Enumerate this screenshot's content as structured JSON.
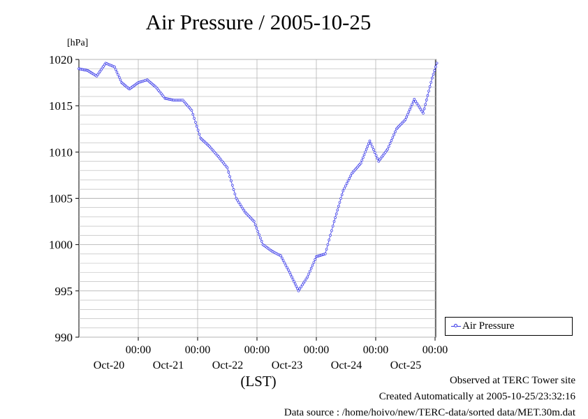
{
  "chart_data": {
    "type": "line",
    "title": "Air Pressure / 2005-10-25",
    "ylabel": "[hPa]",
    "xlabel": "(LST)",
    "ylim": [
      990,
      1020
    ],
    "yticks": [
      990,
      995,
      1000,
      1005,
      1010,
      1015,
      1020
    ],
    "x_tick_labels": [
      {
        "time": "00:00",
        "date": "Oct-20"
      },
      {
        "time": "00:00",
        "date": "Oct-21"
      },
      {
        "time": "00:00",
        "date": "Oct-22"
      },
      {
        "time": "00:00",
        "date": "Oct-23"
      },
      {
        "time": "00:00",
        "date": "Oct-24"
      },
      {
        "time": "00:00",
        "date": "Oct-25"
      }
    ],
    "grid": true,
    "legend_position": "right",
    "series": [
      {
        "name": "Air Pressure",
        "color": "#3535e8",
        "x_days": [
          0,
          0.15,
          0.3,
          0.45,
          0.6,
          0.72,
          0.85,
          1.0,
          1.15,
          1.3,
          1.45,
          1.6,
          1.75,
          1.9,
          2.05,
          2.2,
          2.35,
          2.5,
          2.65,
          2.8,
          2.95,
          3.1,
          3.25,
          3.4,
          3.55,
          3.7,
          3.85,
          4.0,
          4.15,
          4.3,
          4.45,
          4.6,
          4.75,
          4.9,
          5.05,
          5.2,
          5.35,
          5.5,
          5.65,
          5.8,
          5.95,
          6.03
        ],
        "values": [
          1019,
          1018.8,
          1018.2,
          1019.6,
          1019.2,
          1017.5,
          1016.8,
          1017.5,
          1017.8,
          1017,
          1015.8,
          1015.6,
          1015.6,
          1014.5,
          1011.5,
          1010.6,
          1009.5,
          1008.3,
          1005,
          1003.5,
          1002.5,
          1000,
          999.3,
          998.8,
          997,
          995,
          996.5,
          998.7,
          999,
          1002.5,
          1005.8,
          1007.7,
          1008.8,
          1011.2,
          1009,
          1010.3,
          1012.5,
          1013.5,
          1015.7,
          1014.2,
          1018,
          1019.6
        ]
      }
    ]
  },
  "footer": {
    "line1": "Observed at TERC Tower site",
    "line2": "Created Automatically at 2005-10-25/23:32:16",
    "line3": "Data source : /home/hoivo/new/TERC-data/sorted data/MET.30m.dat"
  }
}
